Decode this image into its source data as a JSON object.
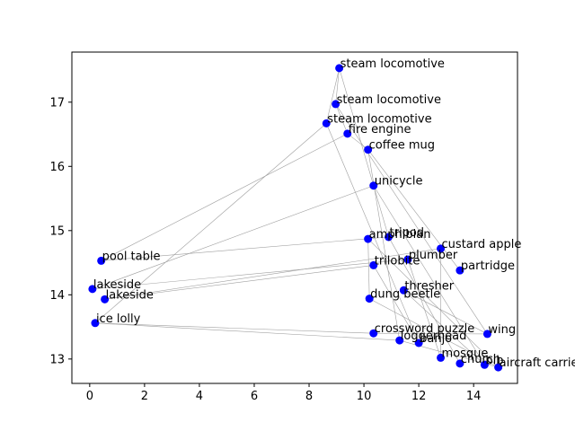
{
  "chart_data": {
    "type": "scatter",
    "title": "",
    "xlabel": "",
    "ylabel": "",
    "xlim": [
      -0.65,
      15.6
    ],
    "ylim": [
      12.62,
      17.78
    ],
    "xticks": [
      0,
      2,
      4,
      6,
      8,
      10,
      12,
      14
    ],
    "yticks": [
      13,
      14,
      15,
      16,
      17
    ],
    "grid": false,
    "legend": false,
    "point_color": "#0000ff",
    "edge_color": "#a0a0a0",
    "points": [
      {
        "label": "steam locomotive",
        "x": 9.1,
        "y": 17.53
      },
      {
        "label": "steam locomotive",
        "x": 8.97,
        "y": 16.97
      },
      {
        "label": "steam locomotive",
        "x": 8.63,
        "y": 16.67
      },
      {
        "label": "fire engine",
        "x": 9.4,
        "y": 16.51
      },
      {
        "label": "coffee mug",
        "x": 10.15,
        "y": 16.26
      },
      {
        "label": "unicycle",
        "x": 10.35,
        "y": 15.7
      },
      {
        "label": "tripod",
        "x": 10.9,
        "y": 14.9
      },
      {
        "label": "amphibian",
        "x": 10.15,
        "y": 14.87
      },
      {
        "label": "custard apple",
        "x": 12.8,
        "y": 14.72
      },
      {
        "label": "plumber",
        "x": 11.6,
        "y": 14.55
      },
      {
        "label": "trilobite",
        "x": 10.35,
        "y": 14.46
      },
      {
        "label": "partridge",
        "x": 13.5,
        "y": 14.38
      },
      {
        "label": "pool table",
        "x": 0.42,
        "y": 14.53
      },
      {
        "label": "lakeside",
        "x": 0.1,
        "y": 14.09
      },
      {
        "label": "lakeside",
        "x": 0.55,
        "y": 13.93
      },
      {
        "label": "thresher",
        "x": 11.45,
        "y": 14.07
      },
      {
        "label": "dung beetle",
        "x": 10.2,
        "y": 13.94
      },
      {
        "label": "ice lolly",
        "x": 0.2,
        "y": 13.56
      },
      {
        "label": "crossword puzzle",
        "x": 10.35,
        "y": 13.4
      },
      {
        "label": "loggerhead",
        "x": 11.3,
        "y": 13.29
      },
      {
        "label": "banjo",
        "x": 12.0,
        "y": 13.25
      },
      {
        "label": "wing",
        "x": 14.5,
        "y": 13.39
      },
      {
        "label": "mosque",
        "x": 12.8,
        "y": 13.02
      },
      {
        "label": "church",
        "x": 13.5,
        "y": 12.93
      },
      {
        "label": "bib",
        "x": 14.4,
        "y": 12.91
      },
      {
        "label": "aircraft carrier",
        "x": 14.9,
        "y": 12.87
      }
    ],
    "edges": [
      [
        0,
        1
      ],
      [
        0,
        2
      ],
      [
        0,
        6
      ],
      [
        1,
        3
      ],
      [
        1,
        21
      ],
      [
        2,
        17
      ],
      [
        2,
        20
      ],
      [
        3,
        4
      ],
      [
        3,
        12
      ],
      [
        4,
        11
      ],
      [
        5,
        13
      ],
      [
        5,
        24
      ],
      [
        6,
        12
      ],
      [
        6,
        23
      ],
      [
        7,
        16
      ],
      [
        7,
        25
      ],
      [
        8,
        14
      ],
      [
        9,
        13
      ],
      [
        9,
        22
      ],
      [
        10,
        14
      ],
      [
        10,
        20
      ],
      [
        15,
        24
      ],
      [
        16,
        25
      ],
      [
        17,
        18
      ],
      [
        17,
        19
      ],
      [
        18,
        21
      ],
      [
        19,
        25
      ],
      [
        22,
        8
      ],
      [
        4,
        19
      ],
      [
        15,
        21
      ]
    ]
  }
}
